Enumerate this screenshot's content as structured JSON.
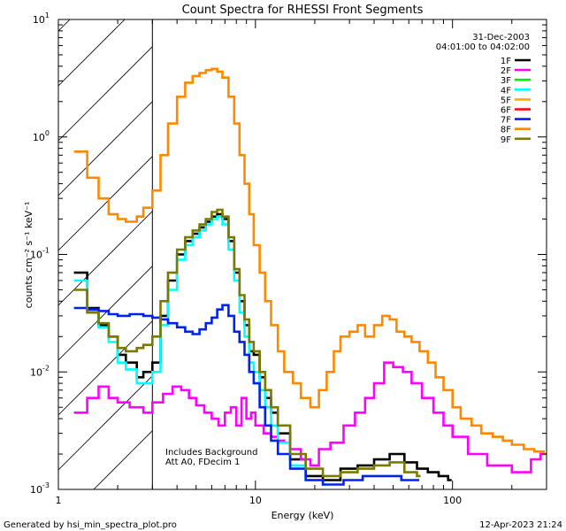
{
  "chart_data": {
    "type": "line",
    "title": "Count Spectra for RHESSI Front Segments",
    "xlabel": "Energy (keV)",
    "ylabel": "counts cm⁻² s⁻¹ keV⁻¹",
    "xscale": "log",
    "yscale": "log",
    "xlim": [
      1,
      300
    ],
    "ylim": [
      0.001,
      10
    ],
    "x_ticks": [
      {
        "value": 1,
        "label": "1"
      },
      {
        "value": 10,
        "label": "10"
      },
      {
        "value": 100,
        "label": "100"
      }
    ],
    "y_ticks": [
      {
        "value": 0.001,
        "base": "10",
        "exp": "-3"
      },
      {
        "value": 0.01,
        "base": "10",
        "exp": "-2"
      },
      {
        "value": 0.1,
        "base": "10",
        "exp": "-1"
      },
      {
        "value": 1,
        "base": "10",
        "exp": "0"
      },
      {
        "value": 10,
        "base": "10",
        "exp": "1"
      }
    ],
    "hatched_region_x": [
      1,
      3
    ],
    "date_text": "31-Dec-2003",
    "time_range_text": "04:01:00 to 04:02:00",
    "annotations": [
      "Includes Background",
      "Att A0, FDecim 1"
    ],
    "series": [
      {
        "name": "1F",
        "color": "#000000",
        "points": [
          [
            1.2,
            0.07
          ],
          [
            1.4,
            0.035
          ],
          [
            1.6,
            0.025
          ],
          [
            1.8,
            0.02
          ],
          [
            2.0,
            0.014
          ],
          [
            2.2,
            0.012
          ],
          [
            2.5,
            0.009
          ],
          [
            2.7,
            0.01
          ],
          [
            3.0,
            0.012
          ],
          [
            3.3,
            0.03
          ],
          [
            3.6,
            0.06
          ],
          [
            4.0,
            0.1
          ],
          [
            4.4,
            0.13
          ],
          [
            4.8,
            0.15
          ],
          [
            5.2,
            0.17
          ],
          [
            5.6,
            0.19
          ],
          [
            6.0,
            0.21
          ],
          [
            6.4,
            0.22
          ],
          [
            6.8,
            0.2
          ],
          [
            7.3,
            0.13
          ],
          [
            7.8,
            0.07
          ],
          [
            8.3,
            0.04
          ],
          [
            8.8,
            0.025
          ],
          [
            9.3,
            0.015
          ],
          [
            9.8,
            0.014
          ],
          [
            10.5,
            0.009
          ],
          [
            11.2,
            0.006
          ],
          [
            12.0,
            0.0045
          ],
          [
            13.0,
            0.003
          ],
          [
            15.0,
            0.0018
          ],
          [
            18.0,
            0.0013
          ],
          [
            22.0,
            0.0012
          ],
          [
            27.0,
            0.0015
          ],
          [
            33.0,
            0.0016
          ],
          [
            40.0,
            0.0018
          ],
          [
            48.0,
            0.002
          ],
          [
            57.0,
            0.0017
          ],
          [
            66.0,
            0.0015
          ],
          [
            75.0,
            0.0014
          ],
          [
            85.0,
            0.0013
          ],
          [
            95.0,
            0.0012
          ]
        ]
      },
      {
        "name": "2F",
        "color": "#ff00ff",
        "points": [
          [
            1.2,
            0.0045
          ],
          [
            1.4,
            0.006
          ],
          [
            1.6,
            0.0075
          ],
          [
            1.8,
            0.006
          ],
          [
            2.0,
            0.0055
          ],
          [
            2.3,
            0.005
          ],
          [
            2.7,
            0.0045
          ],
          [
            3.0,
            0.0055
          ],
          [
            3.4,
            0.0065
          ],
          [
            3.8,
            0.0075
          ],
          [
            4.2,
            0.007
          ],
          [
            4.6,
            0.006
          ],
          [
            5.0,
            0.0052
          ],
          [
            5.5,
            0.0045
          ],
          [
            6.0,
            0.004
          ],
          [
            6.5,
            0.0035
          ],
          [
            7.0,
            0.0045
          ],
          [
            7.5,
            0.005
          ],
          [
            8.0,
            0.0035
          ],
          [
            8.5,
            0.006
          ],
          [
            9.0,
            0.004
          ],
          [
            9.5,
            0.0045
          ],
          [
            10.0,
            0.0035
          ],
          [
            11.0,
            0.003
          ],
          [
            12.0,
            0.0028
          ],
          [
            13.0,
            0.0026
          ],
          [
            14.0,
            0.0025
          ],
          [
            15.0,
            0.0022
          ],
          [
            17.0,
            0.0018
          ],
          [
            19.0,
            0.0016
          ],
          [
            21.0,
            0.0022
          ],
          [
            24.0,
            0.0025
          ],
          [
            28.0,
            0.0035
          ],
          [
            32.0,
            0.0045
          ],
          [
            36.0,
            0.006
          ],
          [
            40.0,
            0.008
          ],
          [
            45.0,
            0.012
          ],
          [
            50.0,
            0.011
          ],
          [
            56.0,
            0.01
          ],
          [
            62.0,
            0.008
          ],
          [
            70.0,
            0.006
          ],
          [
            80.0,
            0.0045
          ],
          [
            90.0,
            0.0035
          ],
          [
            100.0,
            0.0028
          ],
          [
            120.0,
            0.002
          ],
          [
            150.0,
            0.0016
          ],
          [
            200.0,
            0.0014
          ],
          [
            250.0,
            0.0018
          ],
          [
            280.0,
            0.002
          ]
        ]
      },
      {
        "name": "3F",
        "color": "#00ee00",
        "points": []
      },
      {
        "name": "4F",
        "color": "#00ffff",
        "points": [
          [
            1.2,
            0.06
          ],
          [
            1.4,
            0.033
          ],
          [
            1.6,
            0.024
          ],
          [
            1.8,
            0.018
          ],
          [
            2.0,
            0.012
          ],
          [
            2.2,
            0.0105
          ],
          [
            2.5,
            0.008
          ],
          [
            2.7,
            0.008
          ],
          [
            3.0,
            0.01
          ],
          [
            3.3,
            0.025
          ],
          [
            3.6,
            0.05
          ],
          [
            4.0,
            0.09
          ],
          [
            4.4,
            0.12
          ],
          [
            4.8,
            0.14
          ],
          [
            5.2,
            0.16
          ],
          [
            5.6,
            0.18
          ],
          [
            6.0,
            0.2
          ],
          [
            6.4,
            0.21
          ],
          [
            6.8,
            0.18
          ],
          [
            7.3,
            0.11
          ],
          [
            7.8,
            0.06
          ],
          [
            8.3,
            0.032
          ],
          [
            8.8,
            0.02
          ],
          [
            9.3,
            0.012
          ],
          [
            9.8,
            0.01
          ],
          [
            10.5,
            0.007
          ],
          [
            11.2,
            0.005
          ],
          [
            12.0,
            0.0035
          ],
          [
            13.0,
            0.0025
          ],
          [
            15.0,
            0.0016
          ],
          [
            18.0,
            0.0012
          ],
          [
            22.0,
            0.0011
          ]
        ]
      },
      {
        "name": "5F",
        "color": "#ffaa00",
        "points": []
      },
      {
        "name": "6F",
        "color": "#ff0000",
        "points": []
      },
      {
        "name": "7F",
        "color": "#0022ee",
        "points": [
          [
            1.2,
            0.035
          ],
          [
            1.4,
            0.034
          ],
          [
            1.6,
            0.033
          ],
          [
            1.8,
            0.031
          ],
          [
            2.0,
            0.03
          ],
          [
            2.3,
            0.031
          ],
          [
            2.7,
            0.03
          ],
          [
            3.0,
            0.029
          ],
          [
            3.3,
            0.028
          ],
          [
            3.6,
            0.026
          ],
          [
            4.0,
            0.024
          ],
          [
            4.4,
            0.022
          ],
          [
            4.8,
            0.021
          ],
          [
            5.2,
            0.023
          ],
          [
            5.6,
            0.026
          ],
          [
            6.0,
            0.029
          ],
          [
            6.4,
            0.034
          ],
          [
            6.8,
            0.037
          ],
          [
            7.3,
            0.03
          ],
          [
            7.8,
            0.022
          ],
          [
            8.3,
            0.018
          ],
          [
            8.8,
            0.014
          ],
          [
            9.3,
            0.01
          ],
          [
            9.8,
            0.008
          ],
          [
            10.5,
            0.005
          ],
          [
            11.2,
            0.0035
          ],
          [
            12.0,
            0.0026
          ],
          [
            13.0,
            0.002
          ],
          [
            15.0,
            0.0015
          ],
          [
            18.0,
            0.0012
          ],
          [
            22.0,
            0.0011
          ],
          [
            28.0,
            0.0012
          ],
          [
            35.0,
            0.0013
          ],
          [
            45.0,
            0.0013
          ],
          [
            55.0,
            0.0012
          ],
          [
            65.0,
            0.0012
          ]
        ]
      },
      {
        "name": "8F",
        "color": "#ff8800",
        "points": [
          [
            1.2,
            0.75
          ],
          [
            1.4,
            0.45
          ],
          [
            1.6,
            0.3
          ],
          [
            1.8,
            0.22
          ],
          [
            2.0,
            0.2
          ],
          [
            2.2,
            0.19
          ],
          [
            2.5,
            0.21
          ],
          [
            2.7,
            0.25
          ],
          [
            3.0,
            0.35
          ],
          [
            3.3,
            0.7
          ],
          [
            3.6,
            1.3
          ],
          [
            4.0,
            2.2
          ],
          [
            4.4,
            2.9
          ],
          [
            4.8,
            3.3
          ],
          [
            5.2,
            3.5
          ],
          [
            5.6,
            3.7
          ],
          [
            6.0,
            3.8
          ],
          [
            6.4,
            3.6
          ],
          [
            6.8,
            3.2
          ],
          [
            7.3,
            2.2
          ],
          [
            7.8,
            1.3
          ],
          [
            8.3,
            0.7
          ],
          [
            8.8,
            0.4
          ],
          [
            9.3,
            0.22
          ],
          [
            9.8,
            0.12
          ],
          [
            10.5,
            0.07
          ],
          [
            11.2,
            0.04
          ],
          [
            12.0,
            0.025
          ],
          [
            13.0,
            0.015
          ],
          [
            14.0,
            0.01
          ],
          [
            15.5,
            0.008
          ],
          [
            17.0,
            0.006
          ],
          [
            19.0,
            0.005
          ],
          [
            21.0,
            0.007
          ],
          [
            23.0,
            0.01
          ],
          [
            25.0,
            0.015
          ],
          [
            27.0,
            0.02
          ],
          [
            30.0,
            0.022
          ],
          [
            33.0,
            0.025
          ],
          [
            36.0,
            0.02
          ],
          [
            40.0,
            0.025
          ],
          [
            44.0,
            0.03
          ],
          [
            48.0,
            0.028
          ],
          [
            52.0,
            0.022
          ],
          [
            57.0,
            0.02
          ],
          [
            62.0,
            0.018
          ],
          [
            68.0,
            0.015
          ],
          [
            75.0,
            0.012
          ],
          [
            82.0,
            0.009
          ],
          [
            90.0,
            0.007
          ],
          [
            100.0,
            0.005
          ],
          [
            110.0,
            0.004
          ],
          [
            125.0,
            0.0035
          ],
          [
            140.0,
            0.003
          ],
          [
            160.0,
            0.0028
          ],
          [
            180.0,
            0.0026
          ],
          [
            200.0,
            0.0024
          ],
          [
            230.0,
            0.0022
          ],
          [
            260.0,
            0.0021
          ],
          [
            290.0,
            0.002
          ]
        ]
      },
      {
        "name": "9F",
        "color": "#7a7a00",
        "points": [
          [
            1.2,
            0.05
          ],
          [
            1.4,
            0.032
          ],
          [
            1.6,
            0.026
          ],
          [
            1.8,
            0.02
          ],
          [
            2.0,
            0.016
          ],
          [
            2.2,
            0.015
          ],
          [
            2.5,
            0.016
          ],
          [
            2.7,
            0.017
          ],
          [
            3.0,
            0.02
          ],
          [
            3.3,
            0.04
          ],
          [
            3.6,
            0.07
          ],
          [
            4.0,
            0.11
          ],
          [
            4.4,
            0.14
          ],
          [
            4.8,
            0.16
          ],
          [
            5.2,
            0.18
          ],
          [
            5.6,
            0.2
          ],
          [
            6.0,
            0.23
          ],
          [
            6.4,
            0.24
          ],
          [
            6.8,
            0.21
          ],
          [
            7.3,
            0.14
          ],
          [
            7.8,
            0.075
          ],
          [
            8.3,
            0.045
          ],
          [
            8.8,
            0.028
          ],
          [
            9.3,
            0.018
          ],
          [
            9.8,
            0.015
          ],
          [
            10.5,
            0.01
          ],
          [
            11.2,
            0.007
          ],
          [
            12.0,
            0.005
          ],
          [
            13.0,
            0.0035
          ],
          [
            15.0,
            0.002
          ],
          [
            18.0,
            0.0015
          ],
          [
            22.0,
            0.0013
          ],
          [
            27.0,
            0.0014
          ],
          [
            33.0,
            0.0015
          ],
          [
            40.0,
            0.0016
          ],
          [
            48.0,
            0.0017
          ],
          [
            57.0,
            0.0014
          ],
          [
            66.0,
            0.0013
          ]
        ]
      }
    ]
  },
  "footer": {
    "generated_by": "Generated by hsi_min_spectra_plot.pro",
    "timestamp": "12-Apr-2023 21:24"
  }
}
